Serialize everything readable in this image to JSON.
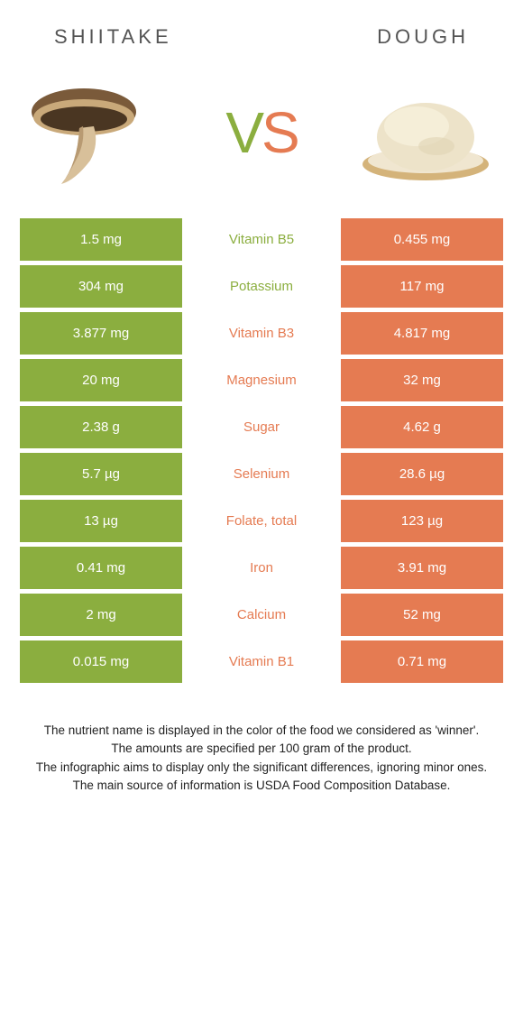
{
  "colors": {
    "green": "#8bae3f",
    "orange": "#e57b52",
    "title": "#555555",
    "text": "#222222",
    "vs_v": "#8bae3f",
    "vs_s": "#e57b52",
    "bg": "#ffffff"
  },
  "header": {
    "left_title": "SHIITAKE",
    "right_title": "DOUGH",
    "vs_v": "V",
    "vs_s": "S"
  },
  "rows": [
    {
      "left": "1.5 mg",
      "mid": "Vitamin B5",
      "right": "0.455 mg",
      "winner": "left"
    },
    {
      "left": "304 mg",
      "mid": "Potassium",
      "right": "117 mg",
      "winner": "left"
    },
    {
      "left": "3.877 mg",
      "mid": "Vitamin B3",
      "right": "4.817 mg",
      "winner": "right"
    },
    {
      "left": "20 mg",
      "mid": "Magnesium",
      "right": "32 mg",
      "winner": "right"
    },
    {
      "left": "2.38 g",
      "mid": "Sugar",
      "right": "4.62 g",
      "winner": "right"
    },
    {
      "left": "5.7 µg",
      "mid": "Selenium",
      "right": "28.6 µg",
      "winner": "right"
    },
    {
      "left": "13 µg",
      "mid": "Folate, total",
      "right": "123 µg",
      "winner": "right"
    },
    {
      "left": "0.41 mg",
      "mid": "Iron",
      "right": "3.91 mg",
      "winner": "right"
    },
    {
      "left": "2 mg",
      "mid": "Calcium",
      "right": "52 mg",
      "winner": "right"
    },
    {
      "left": "0.015 mg",
      "mid": "Vitamin B1",
      "right": "0.71 mg",
      "winner": "right"
    }
  ],
  "footnotes": [
    "The nutrient name is displayed in the color of the food we considered as 'winner'.",
    "The amounts are specified per 100 gram of the product.",
    "The infographic aims to display only the significant differences, ignoring minor ones.",
    "The main source of information is USDA Food Composition Database."
  ]
}
